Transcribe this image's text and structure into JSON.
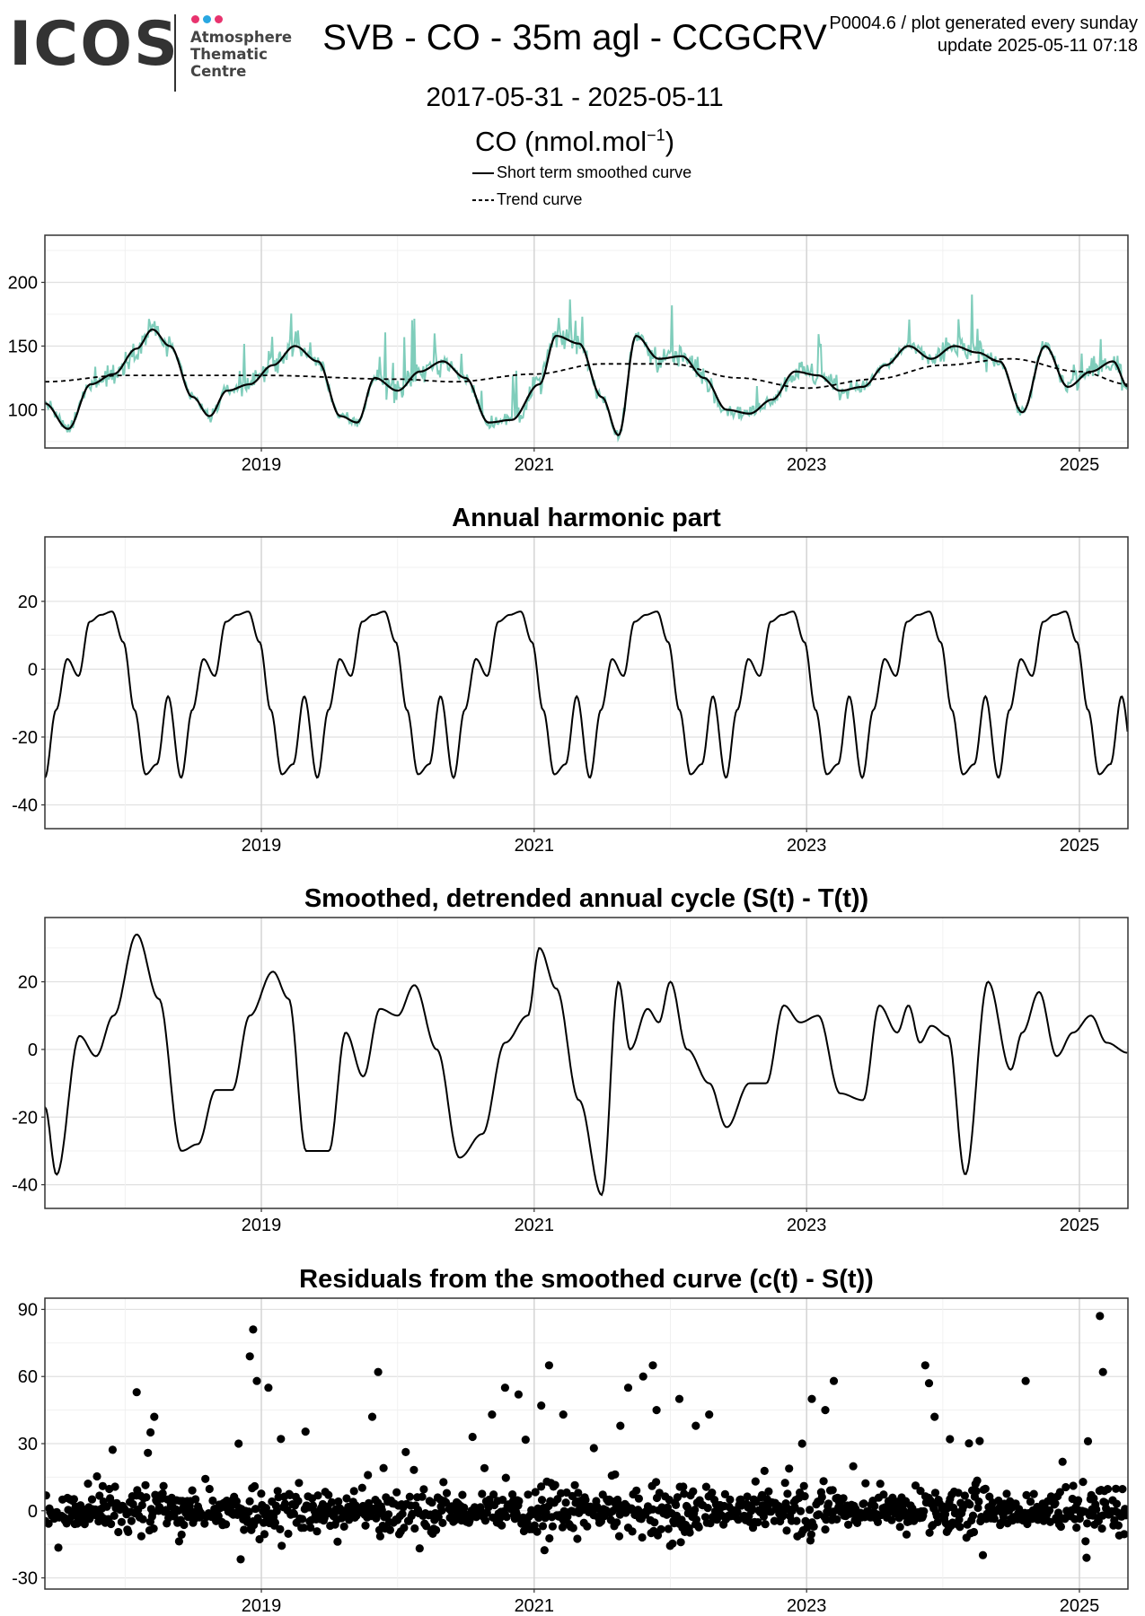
{
  "header": {
    "logo_text": "ICOS",
    "logo_sub": [
      "Atmosphere",
      "Thematic",
      "Centre"
    ],
    "logo_dot_colors": [
      "#e8336e",
      "#29a7e1",
      "#e8336e"
    ],
    "title": "SVB - CO - 35m agl - CCGCRV",
    "meta_line1": "P0004.6 / plot generated every sunday",
    "meta_line2": "update  2025-05-11 07:18",
    "date_range": "2017-05-31 - 2025-05-11",
    "unit_base": "CO (nmol.mol",
    "unit_sup": "−1",
    "unit_close": ")"
  },
  "legend": [
    {
      "label": "Short term smoothed curve",
      "style": "solid"
    },
    {
      "label": "Trend curve",
      "style": "dashed"
    }
  ],
  "chart_data": [
    {
      "type": "line",
      "title": "",
      "xlabel": "",
      "ylabel": "",
      "x_ticks": [
        "2019",
        "2021",
        "2023",
        "2025"
      ],
      "y_ticks": [
        100,
        150,
        200
      ],
      "xlim": [
        "2017-05-31",
        "2025-05-11"
      ],
      "ylim": [
        70,
        237
      ],
      "grid": true,
      "raw_color": "#7fcdbb",
      "series": [
        {
          "name": "Short term smoothed curve",
          "style": "solid",
          "x": [
            "2017-05-31",
            "2017-08-01",
            "2017-10-01",
            "2017-12-01",
            "2018-02-01",
            "2018-03-15",
            "2018-05-01",
            "2018-07-01",
            "2018-08-15",
            "2018-10-01",
            "2018-12-01",
            "2019-02-01",
            "2019-04-01",
            "2019-06-01",
            "2019-08-01",
            "2019-09-15",
            "2019-11-01",
            "2020-01-01",
            "2020-03-01",
            "2020-05-01",
            "2020-07-01",
            "2020-09-01",
            "2020-11-01",
            "2021-01-15",
            "2021-03-01",
            "2021-05-01",
            "2021-07-01",
            "2021-08-15",
            "2021-10-01",
            "2021-12-01",
            "2022-02-01",
            "2022-04-01",
            "2022-06-01",
            "2022-08-01",
            "2022-10-01",
            "2022-12-01",
            "2023-02-01",
            "2023-04-01",
            "2023-06-01",
            "2023-08-01",
            "2023-10-01",
            "2023-12-01",
            "2024-02-01",
            "2024-04-01",
            "2024-06-01",
            "2024-08-01",
            "2024-10-01",
            "2024-12-01",
            "2025-02-01",
            "2025-04-01",
            "2025-05-11"
          ],
          "y": [
            105,
            85,
            120,
            128,
            148,
            163,
            150,
            110,
            95,
            115,
            120,
            135,
            150,
            138,
            95,
            90,
            125,
            115,
            130,
            138,
            125,
            90,
            92,
            120,
            158,
            152,
            110,
            80,
            158,
            140,
            142,
            125,
            100,
            97,
            108,
            130,
            127,
            115,
            118,
            135,
            150,
            140,
            150,
            145,
            138,
            98,
            150,
            118,
            130,
            138,
            118
          ]
        },
        {
          "name": "Trend curve",
          "style": "dashed",
          "x": [
            "2017-05-31",
            "2018-01-01",
            "2019-01-01",
            "2020-01-01",
            "2020-06-01",
            "2021-01-01",
            "2021-07-01",
            "2022-01-01",
            "2022-07-01",
            "2023-01-01",
            "2023-07-01",
            "2024-01-01",
            "2024-07-01",
            "2025-01-01",
            "2025-05-11"
          ],
          "y": [
            122,
            127,
            127,
            124,
            122,
            128,
            136,
            136,
            125,
            117,
            124,
            135,
            140,
            130,
            120
          ]
        }
      ]
    },
    {
      "type": "line",
      "title": "Annual harmonic part",
      "x_ticks": [
        "2019",
        "2021",
        "2023",
        "2025"
      ],
      "y_ticks": [
        -40,
        -20,
        0,
        20
      ],
      "xlim": [
        "2017-05-31",
        "2025-05-11"
      ],
      "ylim": [
        -47,
        39
      ],
      "grid": true,
      "cycle": {
        "phase_days": [
          0,
          30,
          60,
          90,
          120,
          150,
          180,
          210,
          240,
          270,
          300,
          330,
          365
        ],
        "values": [
          -32,
          -12,
          3,
          -2,
          14,
          16,
          17,
          8,
          -12,
          -31,
          -28,
          -8,
          -32
        ]
      }
    },
    {
      "type": "line",
      "title": "Smoothed, detrended annual cycle (S(t) - T(t))",
      "x_ticks": [
        "2019",
        "2021",
        "2023",
        "2025"
      ],
      "y_ticks": [
        -40,
        -20,
        0,
        20
      ],
      "xlim": [
        "2017-05-31",
        "2025-05-11"
      ],
      "ylim": [
        -47,
        39
      ],
      "grid": true,
      "series": [
        {
          "name": "",
          "style": "solid",
          "x": [
            "2017-05-31",
            "2017-07-01",
            "2017-09-01",
            "2017-10-15",
            "2017-12-01",
            "2018-02-01",
            "2018-04-01",
            "2018-06-01",
            "2018-07-15",
            "2018-09-01",
            "2018-10-15",
            "2018-12-01",
            "2019-02-01",
            "2019-03-15",
            "2019-05-01",
            "2019-07-01",
            "2019-08-15",
            "2019-10-01",
            "2019-11-15",
            "2020-01-01",
            "2020-02-15",
            "2020-04-15",
            "2020-06-15",
            "2020-08-15",
            "2020-10-15",
            "2020-12-15",
            "2021-01-15",
            "2021-03-01",
            "2021-05-01",
            "2021-07-01",
            "2021-08-15",
            "2021-09-15",
            "2021-11-01",
            "2021-12-01",
            "2022-01-01",
            "2022-02-15",
            "2022-04-15",
            "2022-06-01",
            "2022-08-01",
            "2022-09-15",
            "2022-11-01",
            "2022-12-15",
            "2023-02-01",
            "2023-04-01",
            "2023-06-01",
            "2023-07-15",
            "2023-09-01",
            "2023-10-01",
            "2023-11-01",
            "2023-12-01",
            "2024-01-15",
            "2024-03-01",
            "2024-05-01",
            "2024-07-01",
            "2024-08-01",
            "2024-09-15",
            "2024-11-01",
            "2024-12-15",
            "2025-02-01",
            "2025-03-15",
            "2025-05-11"
          ],
          "y": [
            -17,
            -37,
            4,
            -2,
            10,
            34,
            15,
            -30,
            -28,
            -12,
            -12,
            10,
            23,
            15,
            -30,
            -30,
            5,
            -8,
            12,
            10,
            19,
            0,
            -32,
            -25,
            2,
            10,
            30,
            18,
            -15,
            -43,
            20,
            0,
            12,
            8,
            20,
            0,
            -10,
            -23,
            -10,
            -10,
            13,
            8,
            10,
            -13,
            -15,
            13,
            5,
            13,
            2,
            7,
            4,
            -37,
            20,
            -6,
            5,
            17,
            -2,
            5,
            10,
            2,
            -1
          ]
        }
      ]
    },
    {
      "type": "scatter",
      "title": "Residuals from the smoothed curve (c(t) - S(t))",
      "x_ticks": [
        "2019",
        "2021",
        "2023",
        "2025"
      ],
      "y_ticks": [
        -30,
        0,
        30,
        60,
        90
      ],
      "xlim": [
        "2017-05-31",
        "2025-05-11"
      ],
      "ylim": [
        -35,
        95
      ],
      "grid": true,
      "extreme_points": {
        "x": [
          "2018-02-01",
          "2018-03-10",
          "2018-03-20",
          "2018-11-01",
          "2018-12-01",
          "2018-12-10",
          "2018-12-20",
          "2019-01-20",
          "2019-10-25",
          "2019-11-10",
          "2020-07-20",
          "2020-09-10",
          "2020-10-15",
          "2020-11-20",
          "2021-01-20",
          "2021-02-10",
          "2021-03-20",
          "2021-06-10",
          "2021-08-20",
          "2021-09-10",
          "2021-10-20",
          "2021-11-15",
          "2021-11-25",
          "2022-01-25",
          "2022-03-10",
          "2022-04-15",
          "2022-12-20",
          "2023-01-15",
          "2023-02-20",
          "2023-03-15",
          "2023-11-15",
          "2023-11-25",
          "2023-12-10",
          "2024-01-20",
          "2024-08-10",
          "2025-01-20",
          "2025-02-25",
          "2025-03-05"
        ],
        "y": [
          53,
          35,
          42,
          30,
          69,
          81,
          58,
          55,
          42,
          62,
          33,
          43,
          55,
          52,
          47,
          65,
          43,
          28,
          38,
          55,
          60,
          65,
          45,
          50,
          38,
          43,
          30,
          50,
          45,
          58,
          65,
          57,
          42,
          32,
          58,
          -21,
          87,
          62
        ]
      }
    }
  ]
}
